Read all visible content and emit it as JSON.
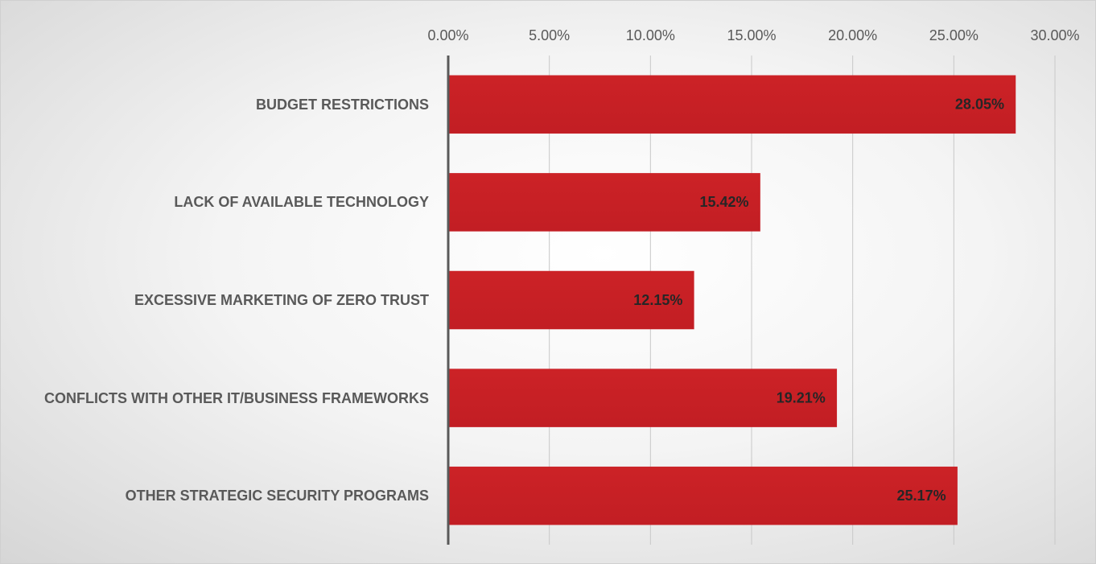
{
  "chart_data": {
    "type": "bar",
    "orientation": "horizontal",
    "categories": [
      "BUDGET RESTRICTIONS",
      "LACK OF AVAILABLE TECHNOLOGY",
      "EXCESSIVE MARKETING OF ZERO TRUST",
      "CONFLICTS WITH OTHER IT/BUSINESS FRAMEWORKS",
      "OTHER STRATEGIC SECURITY PROGRAMS"
    ],
    "values": [
      28.05,
      15.42,
      12.15,
      19.21,
      25.17
    ],
    "value_labels": [
      "28.05%",
      "15.42%",
      "12.15%",
      "19.21%",
      "25.17%"
    ],
    "color": "#c8222a",
    "xlim": [
      0,
      30
    ],
    "xticks": [
      {
        "value": 0,
        "label": "0.00%"
      },
      {
        "value": 5,
        "label": "5.00%"
      },
      {
        "value": 10,
        "label": "10.00%"
      },
      {
        "value": 15,
        "label": "15.00%"
      },
      {
        "value": 20,
        "label": "20.00%"
      },
      {
        "value": 25,
        "label": "25.00%"
      },
      {
        "value": 30,
        "label": "30.00%"
      }
    ],
    "grid": true
  }
}
